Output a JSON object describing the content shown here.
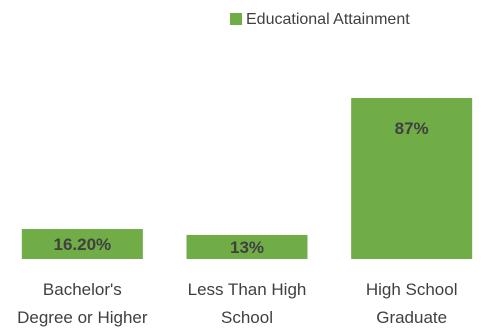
{
  "chart_data": {
    "type": "bar",
    "title": "",
    "xlabel": "",
    "ylabel": "",
    "categories": [
      [
        "Bachelor's",
        "Degree or Higher"
      ],
      [
        "Less Than High",
        "School"
      ],
      [
        "High School",
        "Graduate"
      ]
    ],
    "series": [
      {
        "name": "Educational Attainment",
        "color": "#70AD47",
        "values": [
          16.2,
          13,
          87
        ],
        "labels": [
          "16.20%",
          "13%",
          "87%"
        ]
      }
    ],
    "ylim": [
      0,
      100
    ],
    "grid": false,
    "legend_position": "top-right"
  }
}
